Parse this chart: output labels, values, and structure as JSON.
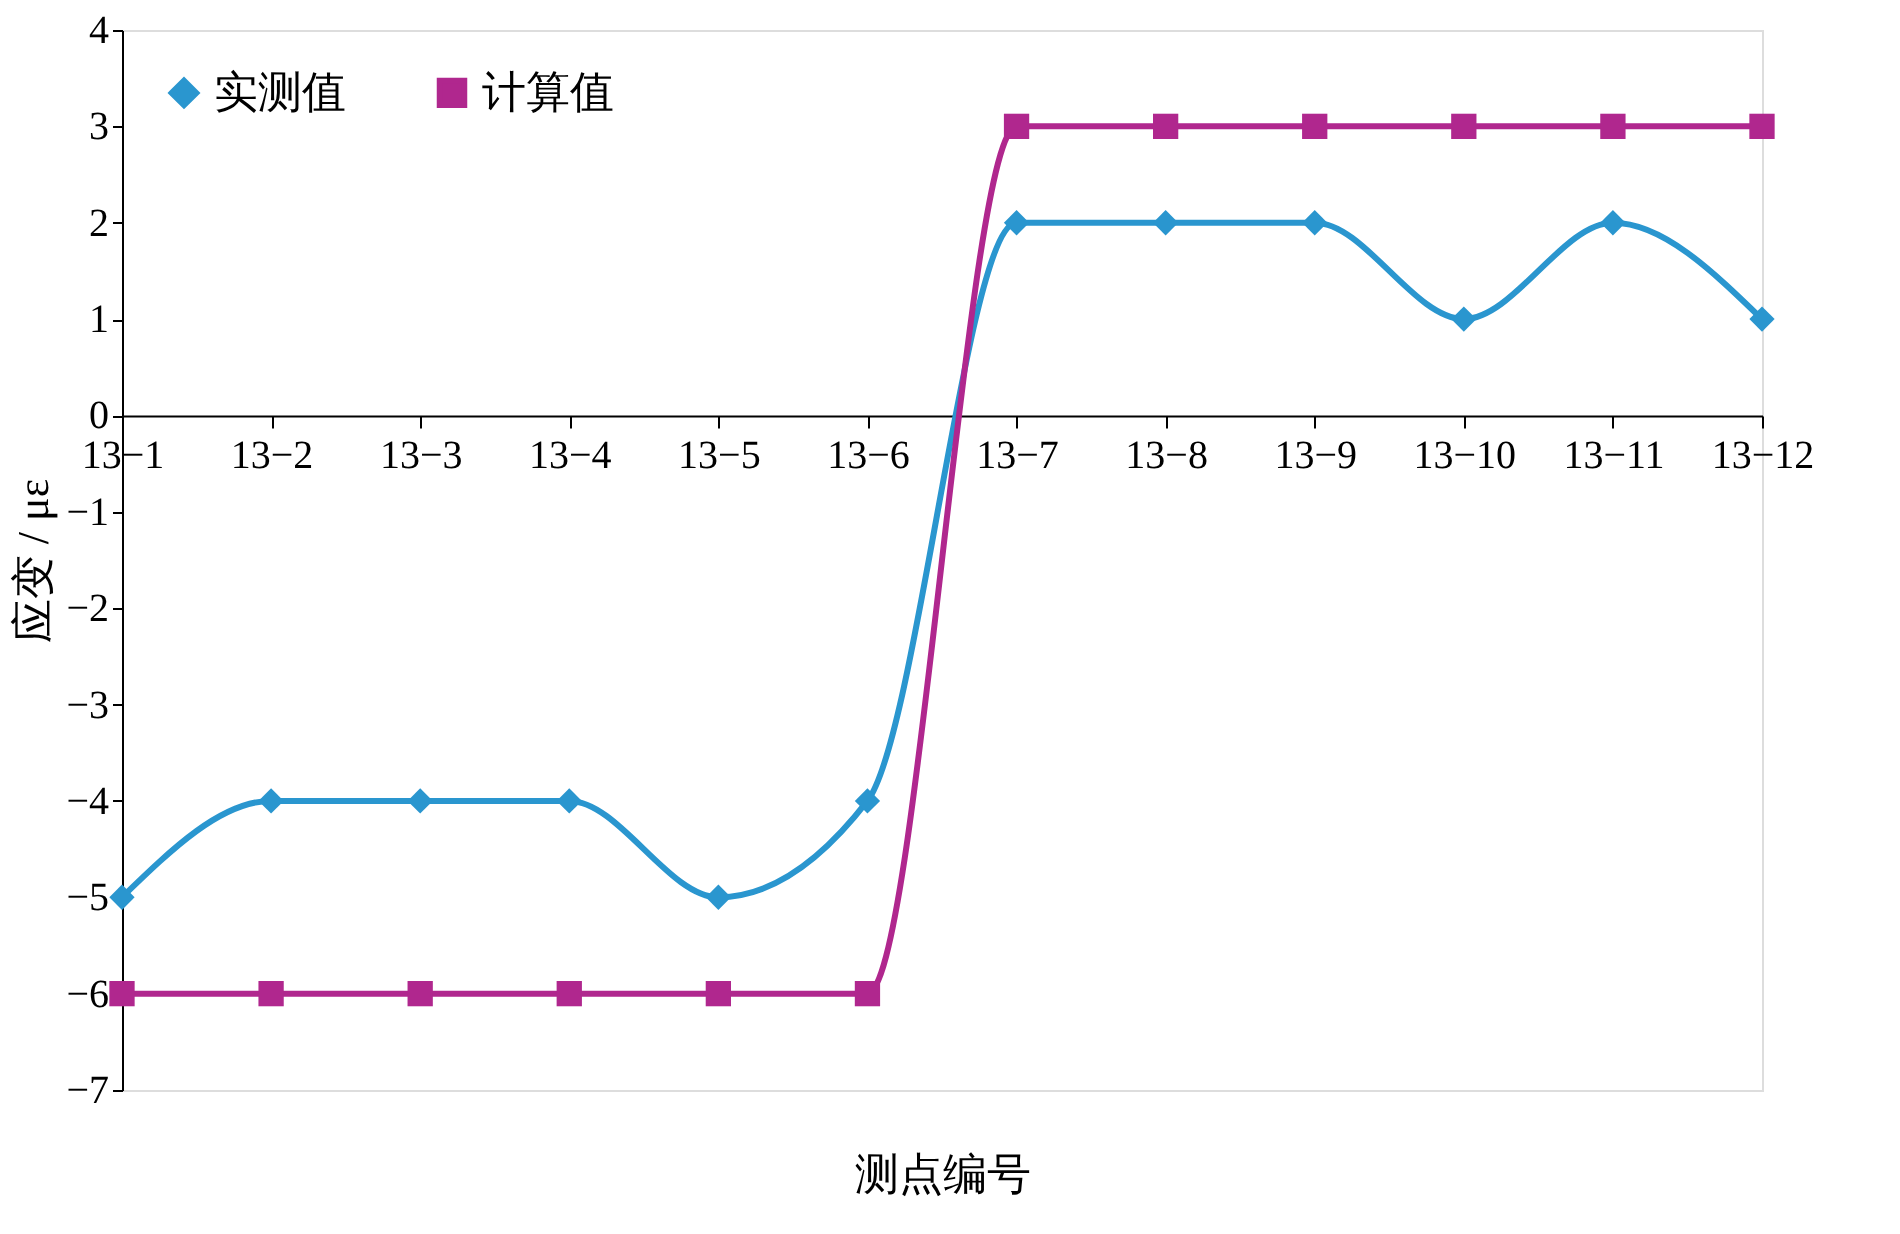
{
  "chart_data": {
    "type": "line",
    "xlabel": "测点编号",
    "ylabel": "应变 / με",
    "categories": [
      "13−1",
      "13−2",
      "13−3",
      "13−4",
      "13−5",
      "13−6",
      "13−7",
      "13−8",
      "13−9",
      "13−10",
      "13−11",
      "13−12"
    ],
    "series": [
      {
        "name": "实测值",
        "color": "#2a96cf",
        "marker": "diamond",
        "values": [
          -5,
          -4,
          -4,
          -4,
          -5,
          -4,
          2,
          2,
          2,
          1,
          2,
          1
        ]
      },
      {
        "name": "计算值",
        "color": "#b0278e",
        "marker": "square",
        "values": [
          -6,
          -6,
          -6,
          -6,
          -6,
          -6,
          3,
          3,
          3,
          3,
          3,
          3
        ]
      }
    ],
    "ylim": [
      -7,
      4
    ],
    "yticks": [
      -7,
      -6,
      -5,
      -4,
      -3,
      -2,
      -1,
      0,
      1,
      2,
      3,
      4
    ],
    "grid": false,
    "legend": "top left"
  }
}
